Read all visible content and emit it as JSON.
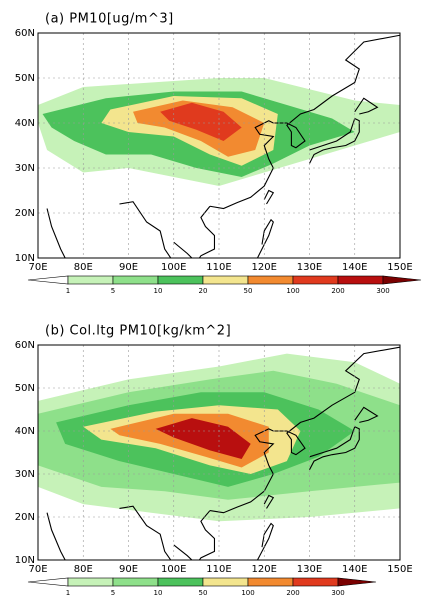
{
  "panels": [
    {
      "title": "(a) PM10[ug/m^3]",
      "lat_labels": [
        "60N",
        "50N",
        "40N",
        "30N",
        "20N",
        "10N"
      ],
      "lon_labels": [
        "70E",
        "80E",
        "90E",
        "100E",
        "110E",
        "120E",
        "130E",
        "140E",
        "150E"
      ],
      "colorbar_labels": [
        "1",
        "5",
        "10",
        "20",
        "50",
        "100",
        "200",
        "300"
      ]
    },
    {
      "title": "(b) Col.ltg PM10[kg/km^2]",
      "lat_labels": [
        "60N",
        "50N",
        "40N",
        "30N",
        "20N",
        "10N"
      ],
      "lon_labels": [
        "70E",
        "80E",
        "90E",
        "100E",
        "110E",
        "120E",
        "130E",
        "140E",
        "150E"
      ],
      "colorbar_labels": [
        "1",
        "5",
        "10",
        "50",
        "100",
        "200",
        "300"
      ]
    }
  ]
}
